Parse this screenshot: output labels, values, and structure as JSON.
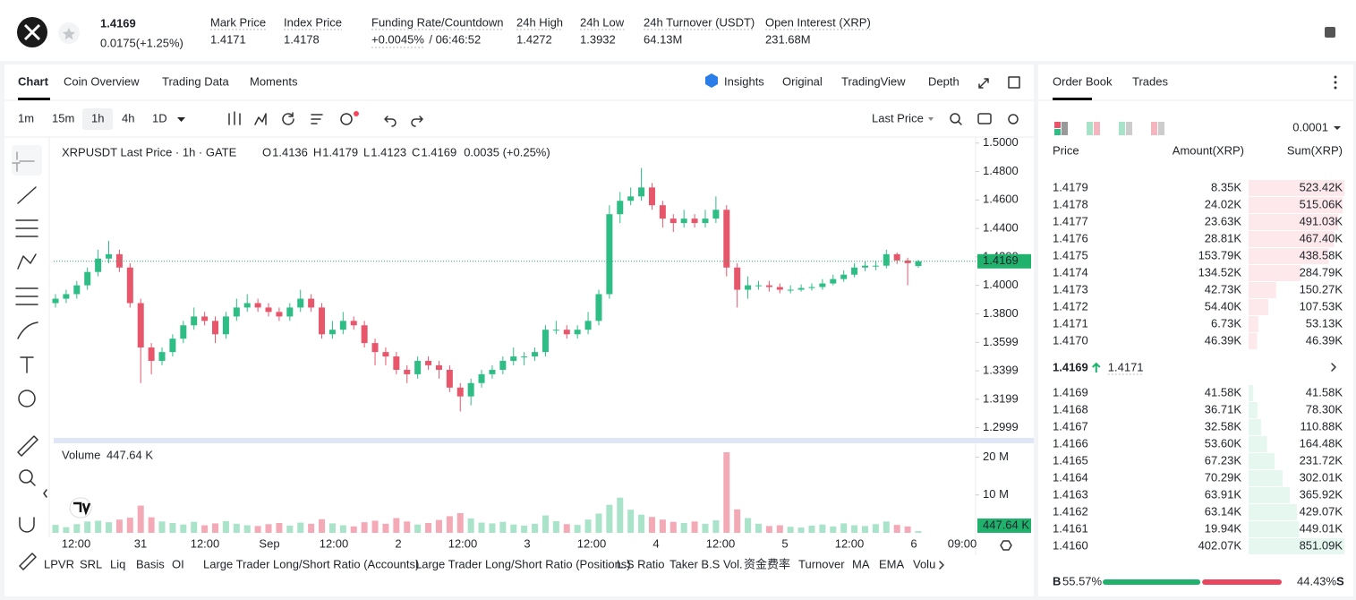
{
  "header": {
    "price": "1.4169",
    "change": "0.0175(+1.25%)",
    "stats": [
      {
        "label": "Mark Price",
        "value": "1.4171"
      },
      {
        "label": "Index Price",
        "value": "1.4178"
      },
      {
        "label": "Funding Rate/Countdown",
        "value": "+0.0045%",
        "extra": "/ 06:46:52"
      },
      {
        "label": "24h High",
        "value": "1.4272"
      },
      {
        "label": "24h Low",
        "value": "1.3932"
      },
      {
        "label": "24h Turnover (USDT)",
        "value": "64.13M"
      },
      {
        "label": "Open Interest (XRP)",
        "value": "231.68M"
      }
    ]
  },
  "tabs": {
    "left": [
      "Chart",
      "Coin Overview",
      "Trading Data",
      "Moments"
    ],
    "right": [
      "Insights",
      "Original",
      "TradingView",
      "Depth"
    ]
  },
  "toolbar": {
    "intervals": [
      "1m",
      "15m",
      "1h",
      "4h",
      "1D"
    ],
    "price_type": "Last Price"
  },
  "chart_data": {
    "type": "candlestick",
    "legend": {
      "title": "XRPUSDT Last Price · 1h · GATE",
      "o_label": "O",
      "o": "1.4136",
      "h_label": "H",
      "h": "1.4179",
      "l_label": "L",
      "l": "1.4123",
      "c_label": "C",
      "c": "1.4169",
      "change": "0.0035 (+0.25%)"
    },
    "ylim": [
      1.294,
      1.503
    ],
    "yticks": [
      {
        "value": 1.5,
        "label": "1.5000"
      },
      {
        "value": 1.48,
        "label": "1.4800"
      },
      {
        "value": 1.46,
        "label": "1.4600"
      },
      {
        "value": 1.44,
        "label": "1.4400"
      },
      {
        "value": 1.42,
        "label": "1.4200"
      },
      {
        "value": 1.4,
        "label": "1.4000"
      },
      {
        "value": 1.38,
        "label": "1.3800"
      },
      1.3599,
      1.3399,
      1.3199,
      1.2999
    ],
    "last_price": {
      "value": 1.4169,
      "label": "1.4169"
    },
    "candles": [
      [
        1.3875,
        1.3938,
        1.3844,
        1.3906
      ],
      [
        1.3906,
        1.3969,
        1.3875,
        1.3938
      ],
      [
        1.3938,
        1.4031,
        1.3906,
        1.4
      ],
      [
        1.4,
        1.4125,
        1.3969,
        1.4094
      ],
      [
        1.4094,
        1.425,
        1.4063,
        1.4188
      ],
      [
        1.4188,
        1.4313,
        1.4156,
        1.4219
      ],
      [
        1.4219,
        1.425,
        1.4094,
        1.4125
      ],
      [
        1.4125,
        1.4156,
        1.3844,
        1.3875
      ],
      [
        1.3875,
        1.3906,
        1.3313,
        1.3563
      ],
      [
        1.3563,
        1.3594,
        1.3375,
        1.3469
      ],
      [
        1.3469,
        1.3563,
        1.3438,
        1.3531
      ],
      [
        1.3531,
        1.3656,
        1.35,
        1.3625
      ],
      [
        1.3625,
        1.375,
        1.3594,
        1.3719
      ],
      [
        1.3719,
        1.3844,
        1.3688,
        1.3781
      ],
      [
        1.3781,
        1.3813,
        1.3719,
        1.375
      ],
      [
        1.375,
        1.3781,
        1.3594,
        1.3656
      ],
      [
        1.3656,
        1.3813,
        1.3625,
        1.3781
      ],
      [
        1.3781,
        1.3906,
        1.375,
        1.3844
      ],
      [
        1.3844,
        1.3938,
        1.3813,
        1.3875
      ],
      [
        1.3875,
        1.3906,
        1.3813,
        1.3844
      ],
      [
        1.3844,
        1.3875,
        1.3781,
        1.3813
      ],
      [
        1.3813,
        1.3844,
        1.375,
        1.3781
      ],
      [
        1.3781,
        1.3875,
        1.375,
        1.3844
      ],
      [
        1.3844,
        1.3969,
        1.3813,
        1.3906
      ],
      [
        1.3906,
        1.3938,
        1.3813,
        1.3844
      ],
      [
        1.3844,
        1.3875,
        1.3625,
        1.3656
      ],
      [
        1.3656,
        1.375,
        1.3625,
        1.3688
      ],
      [
        1.3688,
        1.3813,
        1.3656,
        1.375
      ],
      [
        1.375,
        1.3781,
        1.3688,
        1.3719
      ],
      [
        1.3719,
        1.375,
        1.3563,
        1.3594
      ],
      [
        1.3594,
        1.3625,
        1.3438,
        1.3531
      ],
      [
        1.3531,
        1.3563,
        1.3438,
        1.35
      ],
      [
        1.35,
        1.3531,
        1.3375,
        1.3406
      ],
      [
        1.3406,
        1.3438,
        1.3313,
        1.3375
      ],
      [
        1.3375,
        1.35,
        1.3344,
        1.3469
      ],
      [
        1.3469,
        1.35,
        1.3406,
        1.3438
      ],
      [
        1.3438,
        1.3469,
        1.3344,
        1.3406
      ],
      [
        1.3406,
        1.3438,
        1.325,
        1.3281
      ],
      [
        1.3281,
        1.3313,
        1.3113,
        1.3219
      ],
      [
        1.3219,
        1.3344,
        1.3156,
        1.3313
      ],
      [
        1.3313,
        1.3406,
        1.3281,
        1.3375
      ],
      [
        1.3375,
        1.3438,
        1.3344,
        1.3406
      ],
      [
        1.3406,
        1.35,
        1.3375,
        1.3469
      ],
      [
        1.3469,
        1.3563,
        1.3438,
        1.35
      ],
      [
        1.35,
        1.3531,
        1.3438,
        1.35
      ],
      [
        1.35,
        1.3563,
        1.3469,
        1.3531
      ],
      [
        1.3531,
        1.3719,
        1.35,
        1.3688
      ],
      [
        1.3688,
        1.375,
        1.3656,
        1.3688
      ],
      [
        1.3688,
        1.3719,
        1.3625,
        1.3656
      ],
      [
        1.3656,
        1.3719,
        1.3625,
        1.3688
      ],
      [
        1.3688,
        1.3813,
        1.3656,
        1.375
      ],
      [
        1.375,
        1.3969,
        1.3719,
        1.3938
      ],
      [
        1.3938,
        1.4563,
        1.3906,
        1.45
      ],
      [
        1.45,
        1.4656,
        1.4438,
        1.4594
      ],
      [
        1.4594,
        1.4688,
        1.4563,
        1.4625
      ],
      [
        1.4625,
        1.4825,
        1.4594,
        1.4688
      ],
      [
        1.4688,
        1.4719,
        1.4531,
        1.4563
      ],
      [
        1.4563,
        1.4594,
        1.4406,
        1.4469
      ],
      [
        1.4469,
        1.45,
        1.4375,
        1.4438
      ],
      [
        1.4438,
        1.4531,
        1.4406,
        1.4469
      ],
      [
        1.4469,
        1.45,
        1.4406,
        1.4438
      ],
      [
        1.4438,
        1.4531,
        1.4406,
        1.4469
      ],
      [
        1.4469,
        1.4625,
        1.4438,
        1.4531
      ],
      [
        1.4531,
        1.4563,
        1.4063,
        1.4125
      ],
      [
        1.4125,
        1.4156,
        1.3844,
        1.3969
      ],
      [
        1.3969,
        1.4063,
        1.3906,
        1.4
      ],
      [
        1.4,
        1.4031,
        1.3969,
        1.4
      ],
      [
        1.4,
        1.4031,
        1.3956,
        1.3988
      ],
      [
        1.3988,
        1.4013,
        1.3944,
        1.3969
      ],
      [
        1.3969,
        1.4,
        1.3944,
        1.3969
      ],
      [
        1.3969,
        1.4006,
        1.3956,
        1.3981
      ],
      [
        1.3981,
        1.4013,
        1.3963,
        1.3988
      ],
      [
        1.3988,
        1.4044,
        1.3969,
        1.4013
      ],
      [
        1.4013,
        1.4075,
        1.4,
        1.4044
      ],
      [
        1.4044,
        1.4106,
        1.4025,
        1.4075
      ],
      [
        1.4075,
        1.4156,
        1.4056,
        1.4125
      ],
      [
        1.4125,
        1.4169,
        1.41,
        1.4138
      ],
      [
        1.4138,
        1.4175,
        1.4106,
        1.4138
      ],
      [
        1.4138,
        1.425,
        1.4119,
        1.4219
      ],
      [
        1.4219,
        1.4231,
        1.415,
        1.4175
      ],
      [
        1.4175,
        1.4194,
        1.4,
        1.4156
      ],
      [
        1.4136,
        1.4179,
        1.4123,
        1.4169
      ]
    ],
    "volume": {
      "title": "Volume",
      "last_label": "447.64 K",
      "ylim": [
        0,
        22
      ],
      "yticks": [
        {
          "value": 20,
          "label": "20 M"
        },
        {
          "value": 10,
          "label": "10 M"
        }
      ],
      "values": [
        2.1,
        1.5,
        2.3,
        3.0,
        3.2,
        2.8,
        3.5,
        4.0,
        7.2,
        4.1,
        3.0,
        2.6,
        2.2,
        2.9,
        2.0,
        2.5,
        3.1,
        2.4,
        2.0,
        1.8,
        2.3,
        2.6,
        1.9,
        2.7,
        2.4,
        3.6,
        2.5,
        2.0,
        1.7,
        2.8,
        3.2,
        2.4,
        3.9,
        3.0,
        2.2,
        2.6,
        3.4,
        4.4,
        5.2,
        3.8,
        2.7,
        2.5,
        2.9,
        2.2,
        1.9,
        2.4,
        4.6,
        3.1,
        2.3,
        2.1,
        3.5,
        5.1,
        7.4,
        9.3,
        6.1,
        4.8,
        4.2,
        3.5,
        2.9,
        2.6,
        3.0,
        2.4,
        3.3,
        21.3,
        6.2,
        3.9,
        2.4,
        1.8,
        2.0,
        1.6,
        1.4,
        1.9,
        2.2,
        1.7,
        2.5,
        2.0,
        1.8,
        2.3,
        3.0,
        2.1,
        1.7,
        0.45
      ]
    },
    "x_labels": [
      "12:00",
      "31",
      "12:00",
      "Sep",
      "12:00",
      "2",
      "12:00",
      "3",
      "12:00",
      "4",
      "12:00",
      "5",
      "12:00",
      "6",
      "09:00"
    ]
  },
  "indicators": [
    "LPVR",
    "SRL",
    "Liq",
    "Basis",
    "OI",
    "Large Trader Long/Short Ratio (Accounts)",
    "Large Trader Long/Short Ratio (Positions)",
    "L.S Ratio",
    "Taker B.S Vol.",
    "资金费率",
    "Turnover",
    "MA",
    "EMA",
    "Volu"
  ],
  "order_book": {
    "tabs": [
      "Order Book",
      "Trades"
    ],
    "precision": "0.0001",
    "headers": [
      "Price",
      "Amount(XRP)",
      "Sum(XRP)"
    ],
    "asks": [
      {
        "price": "1.4179",
        "amount": "8.35K",
        "sum": {
          "value": 523.42,
          "label": "523.42K"
        }
      },
      {
        "price": "1.4178",
        "amount": "24.02K",
        "sum": {
          "value": 515.06,
          "label": "515.06K"
        }
      },
      {
        "price": "1.4177",
        "amount": "23.63K",
        "sum": {
          "value": 491.03,
          "label": "491.03K"
        }
      },
      {
        "price": "1.4176",
        "amount": "28.81K",
        "sum": {
          "value": 467.4,
          "label": "467.40K"
        }
      },
      {
        "price": "1.4175",
        "amount": "153.79K",
        "sum": {
          "value": 438.58,
          "label": "438.58K"
        }
      },
      {
        "price": "1.4174",
        "amount": "134.52K",
        "sum": {
          "value": 284.79,
          "label": "284.79K"
        }
      },
      {
        "price": "1.4173",
        "amount": "42.73K",
        "sum": {
          "value": 150.27,
          "label": "150.27K"
        }
      },
      {
        "price": "1.4172",
        "amount": "54.40K",
        "sum": {
          "value": 107.53,
          "label": "107.53K"
        }
      },
      {
        "price": "1.4171",
        "amount": "6.73K",
        "sum": {
          "value": 53.13,
          "label": "53.13K"
        }
      },
      {
        "price": "1.4170",
        "amount": "46.39K",
        "sum": {
          "value": 46.39,
          "label": "46.39K"
        }
      }
    ],
    "mid_price": "1.4169",
    "mark_price": "1.4171",
    "bids": [
      {
        "price": "1.4169",
        "amount": "41.58K",
        "sum": {
          "value": 41.58,
          "label": "41.58K"
        }
      },
      {
        "price": "1.4168",
        "amount": "36.71K",
        "sum": {
          "value": 78.3,
          "label": "78.30K"
        }
      },
      {
        "price": "1.4167",
        "amount": "32.58K",
        "sum": {
          "value": 110.88,
          "label": "110.88K"
        }
      },
      {
        "price": "1.4166",
        "amount": "53.60K",
        "sum": {
          "value": 164.48,
          "label": "164.48K"
        }
      },
      {
        "price": "1.4165",
        "amount": "67.23K",
        "sum": {
          "value": 231.72,
          "label": "231.72K"
        }
      },
      {
        "price": "1.4164",
        "amount": "70.29K",
        "sum": {
          "value": 302.01,
          "label": "302.01K"
        }
      },
      {
        "price": "1.4163",
        "amount": "63.91K",
        "sum": {
          "value": 365.92,
          "label": "365.92K"
        }
      },
      {
        "price": "1.4162",
        "amount": "63.14K",
        "sum": {
          "value": 429.07,
          "label": "429.07K"
        }
      },
      {
        "price": "1.4161",
        "amount": "19.94K",
        "sum": {
          "value": 449.01,
          "label": "449.01K"
        }
      },
      {
        "price": "1.4160",
        "amount": "402.07K",
        "sum": {
          "value": 851.09,
          "label": "851.09K"
        }
      }
    ],
    "buy_tag": "B",
    "buy": {
      "value": 55.57,
      "label": "55.57%"
    },
    "sell": {
      "value": 44.43,
      "label": "44.43%"
    },
    "sell_tag": "S"
  }
}
